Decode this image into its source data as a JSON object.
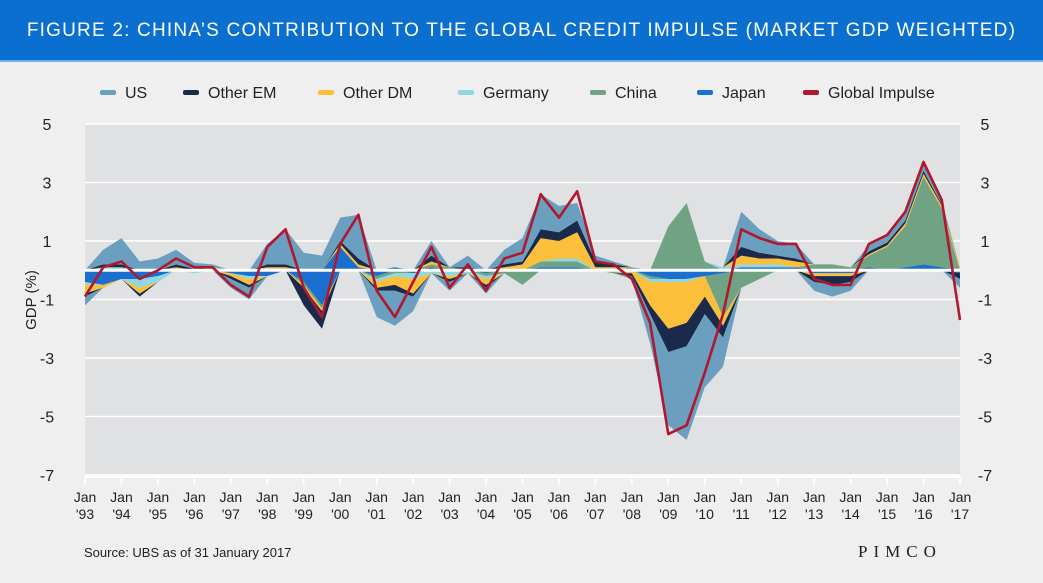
{
  "title": "FIGURE 2: CHINA’S CONTRIBUTION TO THE GLOBAL CREDIT IMPULSE (MARKET GDP WEIGHTED)",
  "source": "Source: UBS as of 31 January 2017",
  "logo": "PIMCO",
  "chart_data": {
    "type": "area",
    "stacked": true,
    "ylabel": "GDP (%)",
    "ylim": [
      -7,
      5
    ],
    "yticks": [
      5,
      3,
      1,
      -1,
      -3,
      -5,
      -7
    ],
    "xticks": [
      [
        "Jan",
        "'93"
      ],
      [
        "Jan",
        "'94"
      ],
      [
        "Jan",
        "'95"
      ],
      [
        "Jan",
        "'96"
      ],
      [
        "Jan",
        "'97"
      ],
      [
        "Jan",
        "'98"
      ],
      [
        "Jan",
        "'99"
      ],
      [
        "Jan",
        "'00"
      ],
      [
        "Jan",
        "'01"
      ],
      [
        "Jan",
        "'02"
      ],
      [
        "Jan",
        "'03"
      ],
      [
        "Jan",
        "'04"
      ],
      [
        "Jan",
        "'05"
      ],
      [
        "Jan",
        "'06"
      ],
      [
        "Jan",
        "'07"
      ],
      [
        "Jan",
        "'08"
      ],
      [
        "Jan",
        "'09"
      ],
      [
        "Jan",
        "'10"
      ],
      [
        "Jan",
        "'11"
      ],
      [
        "Jan",
        "'12"
      ],
      [
        "Jan",
        "'13"
      ],
      [
        "Jan",
        "'14"
      ],
      [
        "Jan",
        "'15"
      ],
      [
        "Jan",
        "'16"
      ],
      [
        "Jan",
        "'17"
      ]
    ],
    "x": [
      1993.0,
      1993.5,
      1994.0,
      1994.5,
      1995.0,
      1995.5,
      1996.0,
      1996.5,
      1997.0,
      1997.5,
      1998.0,
      1998.5,
      1999.0,
      1999.5,
      2000.0,
      2000.5,
      2001.0,
      2001.5,
      2002.0,
      2002.5,
      2003.0,
      2003.5,
      2004.0,
      2004.5,
      2005.0,
      2005.5,
      2006.0,
      2006.5,
      2007.0,
      2007.5,
      2008.0,
      2008.5,
      2009.0,
      2009.5,
      2010.0,
      2010.5,
      2011.0,
      2011.5,
      2012.0,
      2012.5,
      2013.0,
      2013.5,
      2014.0,
      2014.5,
      2015.0,
      2015.5,
      2016.0,
      2016.5,
      2017.0
    ],
    "legend_position": "top",
    "grid": true,
    "series": [
      {
        "name": "US",
        "color": "#6a9fbf",
        "values": [
          -0.3,
          0.5,
          0.9,
          0.3,
          0.4,
          0.5,
          0.2,
          0.1,
          -0.3,
          -0.4,
          0.7,
          1.2,
          0.6,
          0.5,
          0.8,
          1.5,
          -0.9,
          -1.2,
          -0.5,
          0.5,
          -0.3,
          0.4,
          -0.2,
          0.5,
          0.8,
          1.2,
          0.9,
          0.6,
          0.2,
          0.1,
          -0.1,
          -1.0,
          -2.5,
          -3.2,
          -2.5,
          -1.0,
          1.2,
          0.8,
          0.5,
          0.5,
          -0.3,
          -0.4,
          -0.3,
          0.2,
          0.2,
          0.3,
          0.3,
          0.1,
          -0.3
        ]
      },
      {
        "name": "Other EM",
        "color": "#1b2a4a",
        "values": [
          -0.1,
          0.1,
          0.1,
          -0.1,
          0,
          0.1,
          0.05,
          0,
          -0.1,
          -0.1,
          0.1,
          0.1,
          -0.6,
          -0.6,
          0.1,
          0.2,
          -0.1,
          -0.2,
          -0.1,
          0.2,
          -0.1,
          0.1,
          -0.1,
          0.1,
          0.1,
          0.3,
          0.3,
          0.4,
          0.2,
          0.1,
          -0.1,
          -0.3,
          -0.8,
          -0.8,
          -0.6,
          -0.4,
          0.3,
          0.2,
          0.1,
          0.1,
          -0.2,
          -0.3,
          -0.2,
          0.1,
          0.1,
          0.1,
          0.1,
          0.05,
          -0.2
        ]
      },
      {
        "name": "Other DM",
        "color": "#fbbf3c",
        "values": [
          -0.3,
          -0.1,
          0,
          -0.2,
          0,
          0.1,
          0,
          0.1,
          -0.1,
          -0.2,
          0.1,
          0.1,
          -0.1,
          -0.1,
          0.1,
          0.1,
          -0.2,
          -0.3,
          -0.5,
          0.1,
          -0.1,
          0,
          -0.2,
          0.1,
          0.2,
          0.8,
          0.6,
          0.9,
          0.1,
          0.1,
          -0.1,
          -0.8,
          -1.6,
          -1.4,
          -0.7,
          -0.3,
          0.3,
          0.2,
          0.2,
          0.2,
          -0.1,
          -0.1,
          -0.1,
          0.05,
          0.05,
          0.1,
          0.1,
          0.1,
          0.1
        ]
      },
      {
        "name": "Germany",
        "color": "#8fd8e0",
        "values": [
          -0.1,
          0.1,
          0.1,
          -0.3,
          -0.2,
          0,
          -0.1,
          0,
          0,
          -0.1,
          0,
          0,
          0,
          0,
          0,
          0,
          -0.1,
          -0.1,
          -0.2,
          -0.1,
          -0.2,
          -0.1,
          -0.1,
          0,
          0,
          0,
          0.1,
          0.1,
          0,
          0,
          0,
          -0.1,
          -0.1,
          -0.1,
          0,
          0.1,
          0.1,
          0.1,
          0.1,
          0,
          0,
          0,
          0,
          0,
          0,
          0,
          0,
          0,
          0
        ]
      },
      {
        "name": "China",
        "color": "#6fa383",
        "values": [
          0,
          0,
          0,
          0,
          0,
          0,
          0,
          0,
          0,
          0,
          0,
          0,
          -0.1,
          -0.1,
          0,
          0,
          -0.1,
          -0.1,
          0,
          0.1,
          0.1,
          0,
          -0.1,
          -0.1,
          -0.5,
          0.2,
          0.2,
          0.2,
          0,
          -0.1,
          0.1,
          -0.1,
          1.5,
          2.3,
          0.3,
          -1.5,
          -0.6,
          -0.3,
          0,
          0,
          0.2,
          0.2,
          0.1,
          0.4,
          0.8,
          1.4,
          3.0,
          2.0,
          0
        ]
      },
      {
        "name": "Japan",
        "color": "#1a6fcf",
        "values": [
          -0.4,
          -0.5,
          -0.3,
          -0.3,
          -0.2,
          0,
          0,
          0,
          -0.1,
          -0.2,
          -0.2,
          0,
          -0.4,
          -1.2,
          0.8,
          0.1,
          -0.2,
          0.1,
          -0.1,
          0.1,
          0,
          0,
          -0.1,
          0,
          0,
          0.1,
          0.1,
          0.1,
          0,
          0,
          0,
          -0.2,
          -0.3,
          -0.3,
          -0.2,
          -0.1,
          0.1,
          0.1,
          0.1,
          0.1,
          -0.1,
          -0.1,
          -0.1,
          0.1,
          0,
          0.1,
          0.2,
          0.1,
          -0.1
        ]
      },
      {
        "name": "Global Impulse",
        "color": "#b0182f",
        "type": "line",
        "values": [
          -0.9,
          0.1,
          0.3,
          -0.3,
          0.0,
          0.4,
          0.1,
          0.1,
          -0.5,
          -0.9,
          0.8,
          1.4,
          -0.6,
          -1.6,
          0.9,
          1.9,
          -0.7,
          -1.6,
          -0.4,
          0.8,
          -0.6,
          0.2,
          -0.7,
          0.4,
          0.6,
          2.6,
          1.8,
          2.7,
          0.3,
          0.2,
          -0.3,
          -1.8,
          -5.6,
          -5.3,
          -3.5,
          -1.5,
          1.4,
          1.1,
          0.9,
          0.9,
          -0.3,
          -0.5,
          -0.5,
          0.9,
          1.2,
          2.0,
          3.7,
          2.4,
          -1.7
        ]
      }
    ]
  }
}
